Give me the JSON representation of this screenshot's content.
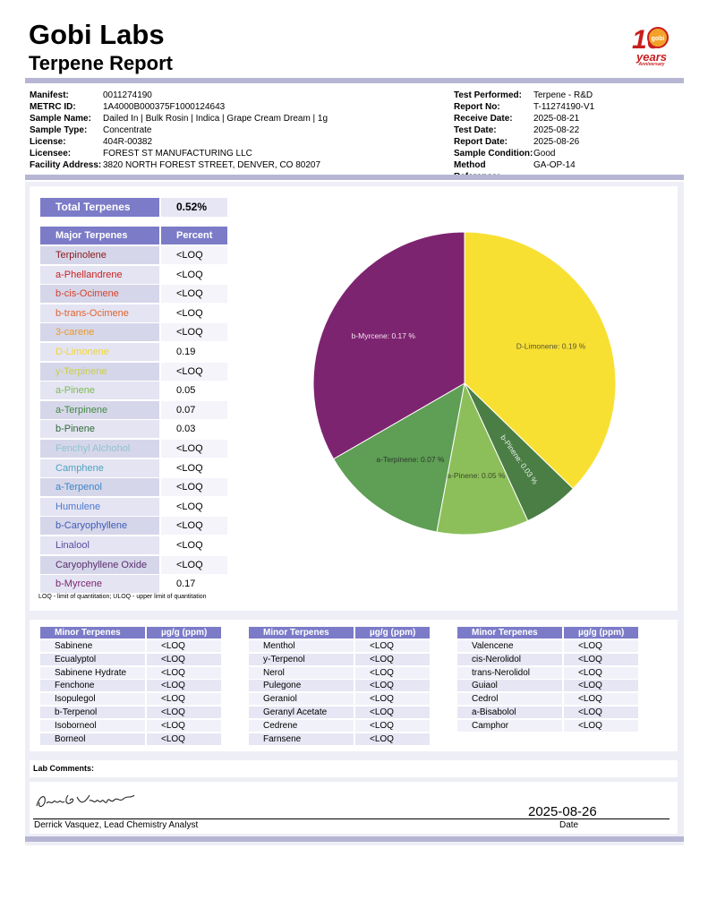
{
  "header": {
    "brand": "Gobi Labs",
    "title": "Terpene Report"
  },
  "logo": {
    "numeral": "10",
    "badge": "gobi",
    "years": "years",
    "anniversary": "Anniversary"
  },
  "meta_left": [
    {
      "label": "Manifest:",
      "value": "0011274190"
    },
    {
      "label": "METRC ID:",
      "value": "1A4000B000375F1000124643"
    },
    {
      "label": "Sample Name:",
      "value": "Dailed In | Bulk Rosin | Indica | Grape Cream Dream | 1g"
    },
    {
      "label": "Sample Type:",
      "value": "Concentrate"
    },
    {
      "label": "License:",
      "value": "404R-00382"
    },
    {
      "label": "Licensee:",
      "value": "FOREST ST MANUFACTURING LLC"
    },
    {
      "label": "Facility Address:",
      "value": "3820 NORTH FOREST STREET, DENVER, CO 80207"
    }
  ],
  "meta_right": [
    {
      "label": "Test Performed:",
      "value": "Terpene - R&D"
    },
    {
      "label": "Report No:",
      "value": "T-11274190-V1"
    },
    {
      "label": "Receive Date:",
      "value": "2025-08-21"
    },
    {
      "label": "Test Date:",
      "value": "2025-08-22"
    },
    {
      "label": "Report Date:",
      "value": "2025-08-26"
    },
    {
      "label": "Sample Condition:",
      "value": "Good"
    },
    {
      "label": "Method Reference:",
      "value": "GA-OP-14"
    }
  ],
  "total": {
    "label": "Total Terpenes",
    "value": "0.52%"
  },
  "major": {
    "col_name": "Major Terpenes",
    "col_value": "Percent",
    "rows": [
      {
        "name": "Terpinolene",
        "value": "<LOQ",
        "color": "#8b1a1a",
        "bg": "#d6d6ea"
      },
      {
        "name": "a-Phellandrene",
        "value": "<LOQ",
        "color": "#c8241e",
        "bg": "#e4e4f3"
      },
      {
        "name": "b-cis-Ocimene",
        "value": "<LOQ",
        "color": "#d2432a",
        "bg": "#d6d6ea"
      },
      {
        "name": "b-trans-Ocimene",
        "value": "<LOQ",
        "color": "#e0632f",
        "bg": "#e4e4f3"
      },
      {
        "name": "3-carene",
        "value": "<LOQ",
        "color": "#e69a2a",
        "bg": "#d6d6ea"
      },
      {
        "name": "D-Limonene",
        "value": "0.19",
        "color": "#f2d634",
        "bg": "#e4e4f3"
      },
      {
        "name": "y-Terpinene",
        "value": "<LOQ",
        "color": "#c8cf4a",
        "bg": "#d6d6ea"
      },
      {
        "name": "a-Pinene",
        "value": "0.05",
        "color": "#7dba52",
        "bg": "#e4e4f3"
      },
      {
        "name": "a-Terpinene",
        "value": "0.07",
        "color": "#3f8a3d",
        "bg": "#d6d6ea"
      },
      {
        "name": "b-Pinene",
        "value": "0.03",
        "color": "#2f6a35",
        "bg": "#e4e4f3"
      },
      {
        "name": "Fenchyl Alchohol",
        "value": "<LOQ",
        "color": "#8fc3cf",
        "bg": "#d6d6ea"
      },
      {
        "name": "Camphene",
        "value": "<LOQ",
        "color": "#4fa2bf",
        "bg": "#e4e4f3"
      },
      {
        "name": "a-Terpenol",
        "value": "<LOQ",
        "color": "#3a86c8",
        "bg": "#d6d6ea"
      },
      {
        "name": "Humulene",
        "value": "<LOQ",
        "color": "#4b78d0",
        "bg": "#e4e4f3"
      },
      {
        "name": "b-Caryophyllene",
        "value": "<LOQ",
        "color": "#3d5cb8",
        "bg": "#d6d6ea"
      },
      {
        "name": "Linalool",
        "value": "<LOQ",
        "color": "#5a4a9c",
        "bg": "#e4e4f3"
      },
      {
        "name": "Caryophyllene Oxide",
        "value": "<LOQ",
        "color": "#5a2e6e",
        "bg": "#d6d6ea"
      },
      {
        "name": "b-Myrcene",
        "value": "0.17",
        "color": "#7a2470",
        "bg": "#e4e4f3"
      }
    ]
  },
  "footnote": "LOQ - limit of quantitation; ULOQ - upper limit of quantitation",
  "chart_data": {
    "type": "pie",
    "title": "",
    "slices": [
      {
        "label": "D-Limonene: 0.19 %",
        "value": 0.19,
        "color": "#f8e033",
        "text_color": "#555533"
      },
      {
        "label": "b-Pinene: 0.03 %",
        "value": 0.03,
        "color": "#4a7e45",
        "text_color": "#e8f0e8"
      },
      {
        "label": "a-Pinene: 0.05 %",
        "value": 0.05,
        "color": "#8cbf5a",
        "text_color": "#3a4a2a"
      },
      {
        "label": "a-Terpinene: 0.07 %",
        "value": 0.07,
        "color": "#5f9e55",
        "text_color": "#2a3a2a"
      },
      {
        "label": "b-Myrcene: 0.17 %",
        "value": 0.17,
        "color": "#7d2470",
        "text_color": "#f4e4f0"
      }
    ]
  },
  "minor": {
    "col_name": "Minor Terpenes",
    "col_value": "µg/g (ppm)",
    "tables": [
      [
        {
          "name": "Sabinene",
          "value": "<LOQ"
        },
        {
          "name": "Ecualyptol",
          "value": "<LOQ"
        },
        {
          "name": "Sabinene Hydrate",
          "value": "<LOQ"
        },
        {
          "name": "Fenchone",
          "value": "<LOQ"
        },
        {
          "name": "Isopulegol",
          "value": "<LOQ"
        },
        {
          "name": "b-Terpenol",
          "value": "<LOQ"
        },
        {
          "name": "Isoborneol",
          "value": "<LOQ"
        },
        {
          "name": "Borneol",
          "value": "<LOQ"
        }
      ],
      [
        {
          "name": "Menthol",
          "value": "<LOQ"
        },
        {
          "name": "y-Terpenol",
          "value": "<LOQ"
        },
        {
          "name": "Nerol",
          "value": "<LOQ"
        },
        {
          "name": "Pulegone",
          "value": "<LOQ"
        },
        {
          "name": "Geraniol",
          "value": "<LOQ"
        },
        {
          "name": "Geranyl Acetate",
          "value": "<LOQ"
        },
        {
          "name": "Cedrene",
          "value": "<LOQ"
        },
        {
          "name": "Farnsene",
          "value": "<LOQ"
        }
      ],
      [
        {
          "name": "Valencene",
          "value": "<LOQ"
        },
        {
          "name": "cis-Nerolidol",
          "value": "<LOQ"
        },
        {
          "name": "trans-Nerolidol",
          "value": "<LOQ"
        },
        {
          "name": "Guiaol",
          "value": "<LOQ"
        },
        {
          "name": "Cedrol",
          "value": "<LOQ"
        },
        {
          "name": "a-Bisabolol",
          "value": "<LOQ"
        },
        {
          "name": "Camphor",
          "value": "<LOQ"
        }
      ]
    ]
  },
  "comments": {
    "label": "Lab Comments:"
  },
  "signature": {
    "analyst": "Derrick Vasquez, Lead Chemistry Analyst",
    "date_value": "2025-08-26",
    "date_label": "Date"
  }
}
